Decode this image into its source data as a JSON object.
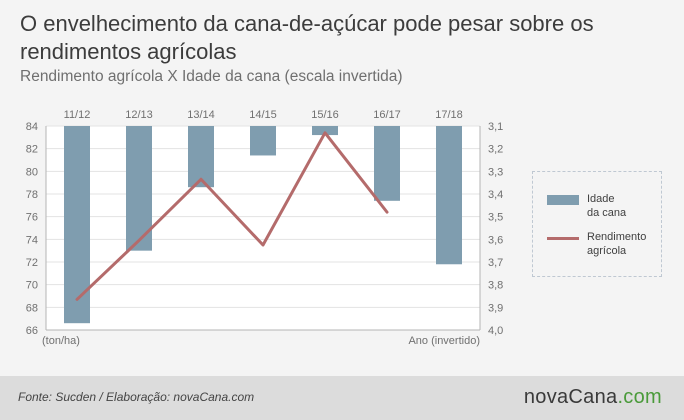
{
  "title": "O envelhecimento da cana-de-açúcar pode pesar sobre os rendimentos agrícolas",
  "subtitle": "Rendimento agrícola X Idade da cana (escala invertida)",
  "chart_data": {
    "type": "bar+line",
    "categories": [
      "11/12",
      "12/13",
      "13/14",
      "14/15",
      "15/16",
      "16/17",
      "17/18"
    ],
    "series": [
      {
        "name": "Idade da cana",
        "type": "bar",
        "axis": "right",
        "values": [
          3.97,
          3.65,
          3.37,
          3.23,
          3.14,
          3.43,
          3.71
        ],
        "color": "#7f9daf"
      },
      {
        "name": "Rendimento agrícola",
        "type": "line",
        "axis": "left",
        "values": [
          68.7,
          73.9,
          79.3,
          73.5,
          83.4,
          76.4,
          null
        ],
        "color": "#b46b6b"
      }
    ],
    "left_axis": {
      "ylim": [
        66,
        84
      ],
      "ticks": [
        84,
        82,
        80,
        78,
        76,
        74,
        72,
        70,
        68,
        66
      ],
      "label": "(ton/ha)"
    },
    "right_axis": {
      "ylim": [
        3.1,
        4.0
      ],
      "inverted": true,
      "ticks": [
        "3,1",
        "3,2",
        "3,3",
        "3,4",
        "3,5",
        "3,6",
        "3,7",
        "3,8",
        "3,9",
        "4,0"
      ],
      "label": "Ano (invertido)"
    },
    "grid": true,
    "legend_position": "right"
  },
  "legend": {
    "bar_label_1": "Idade",
    "bar_label_2": "da cana",
    "line_label_1": "Rendimento",
    "line_label_2": "agrícola"
  },
  "footer": {
    "source": "Fonte: Sucden / Elaboração: novaCana.com",
    "brand_main": "novaCana",
    "brand_suffix": ".com"
  }
}
